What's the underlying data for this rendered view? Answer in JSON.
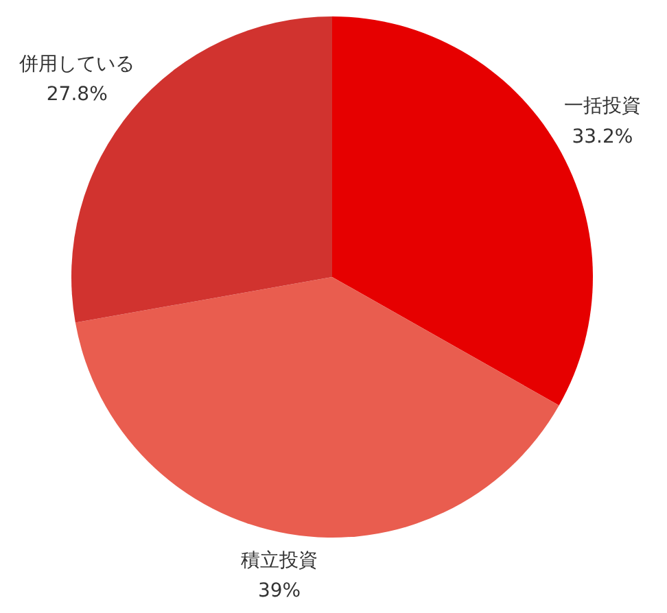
{
  "chart_data": {
    "type": "pie",
    "categories": [
      "一括投資",
      "積立投資",
      "併用している"
    ],
    "values": [
      33.2,
      39,
      27.8
    ],
    "value_labels": [
      "33.2%",
      "39%",
      "27.8%"
    ],
    "colors": [
      "#e60000",
      "#e95d4f",
      "#d1332f"
    ]
  }
}
